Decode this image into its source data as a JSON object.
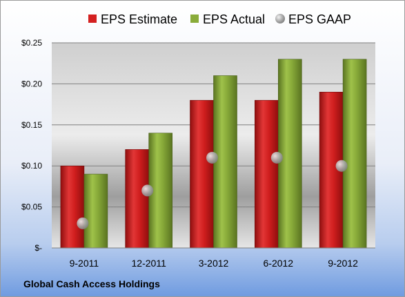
{
  "caption": "Global Cash Access Holdings",
  "chart_data": {
    "type": "bar",
    "categories": [
      "9-2011",
      "12-2011",
      "3-2012",
      "6-2012",
      "9-2012"
    ],
    "series": [
      {
        "name": "EPS Estimate",
        "type": "bar",
        "color": "#d42020",
        "values": [
          0.1,
          0.12,
          0.18,
          0.18,
          0.19
        ]
      },
      {
        "name": "EPS Actual",
        "type": "bar",
        "color": "#8aac3a",
        "values": [
          0.09,
          0.14,
          0.21,
          0.23,
          0.23
        ]
      },
      {
        "name": "EPS GAAP",
        "type": "marker",
        "color": "#a6a6a6",
        "values": [
          0.03,
          0.07,
          0.11,
          0.11,
          0.1
        ]
      }
    ],
    "yticks": [
      "$0.25",
      "$0.20",
      "$0.15",
      "$0.10",
      "$0.05",
      "$-"
    ],
    "ylim": [
      0,
      0.25
    ],
    "grid": true,
    "legend": "top"
  }
}
